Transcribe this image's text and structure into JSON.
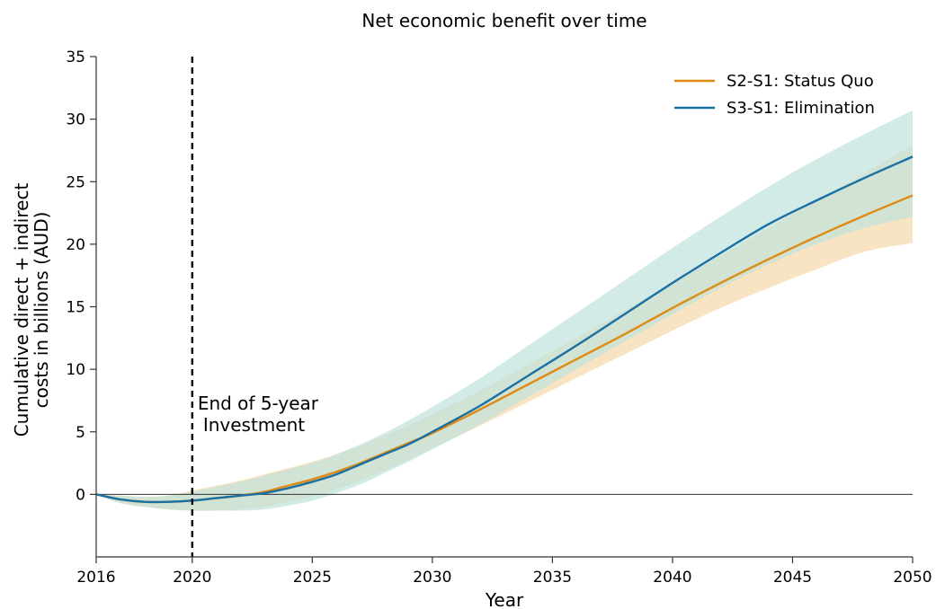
{
  "chart_data": {
    "type": "line",
    "title": "Net economic benefit over time",
    "xlabel": "Year",
    "ylabel_lines": [
      "Cumulative direct + indirect",
      "costs in billions (AUD)"
    ],
    "xlim": [
      2016,
      2050
    ],
    "ylim": [
      -5,
      35
    ],
    "xticks": [
      2016,
      2020,
      2025,
      2030,
      2035,
      2040,
      2045,
      2050
    ],
    "yticks": [
      0,
      5,
      10,
      15,
      20,
      25,
      30,
      35
    ],
    "grid": false,
    "legend_position": "top-right",
    "annotation": {
      "x": 2020,
      "style": "dashed vertical line",
      "text_lines": [
        "End of 5-year",
        "Investment"
      ]
    },
    "reference_line": {
      "y": 0
    },
    "x": [
      2016,
      2017,
      2018,
      2019,
      2020,
      2021,
      2022,
      2023,
      2024,
      2025,
      2026,
      2027,
      2028,
      2029,
      2030,
      2032,
      2034,
      2036,
      2038,
      2040,
      2042,
      2044,
      2046,
      2048,
      2050
    ],
    "series": [
      {
        "name": "S2-S1: Status Quo",
        "color": "#e08a12",
        "band_color": "#f5d9ad",
        "values": [
          0,
          -0.4,
          -0.6,
          -0.6,
          -0.5,
          -0.3,
          -0.1,
          0.2,
          0.7,
          1.2,
          1.8,
          2.5,
          3.3,
          4.1,
          4.9,
          6.8,
          8.8,
          10.8,
          12.8,
          14.9,
          16.9,
          18.8,
          20.6,
          22.3,
          23.9
        ],
        "lower": [
          0,
          -0.7,
          -1.0,
          -1.2,
          -1.3,
          -1.3,
          -1.2,
          -1.0,
          -0.6,
          -0.2,
          0.4,
          1.1,
          1.9,
          2.8,
          3.7,
          5.5,
          7.4,
          9.3,
          11.2,
          13.1,
          14.9,
          16.5,
          18.0,
          19.4,
          20.1
        ],
        "upper": [
          0,
          -0.1,
          -0.2,
          -0.1,
          0.3,
          0.7,
          1.1,
          1.6,
          2.1,
          2.6,
          3.2,
          3.9,
          4.7,
          5.5,
          6.4,
          8.3,
          10.4,
          12.5,
          14.7,
          16.9,
          19.1,
          21.3,
          23.5,
          25.7,
          27.9
        ]
      },
      {
        "name": "S3-S1: Elimination",
        "color": "#1a6fa3",
        "band_color": "#bfe3dc",
        "values": [
          0,
          -0.4,
          -0.6,
          -0.6,
          -0.5,
          -0.3,
          -0.1,
          0.1,
          0.5,
          1.0,
          1.6,
          2.4,
          3.2,
          4.0,
          5.0,
          7.1,
          9.5,
          11.9,
          14.4,
          16.9,
          19.3,
          21.6,
          23.5,
          25.3,
          27.0
        ],
        "lower": [
          0,
          -0.7,
          -1.0,
          -1.2,
          -1.3,
          -1.3,
          -1.3,
          -1.2,
          -0.9,
          -0.5,
          0.1,
          0.8,
          1.7,
          2.6,
          3.6,
          5.6,
          7.8,
          10.0,
          12.2,
          14.4,
          16.5,
          18.4,
          20.0,
          21.3,
          22.2
        ],
        "upper": [
          0,
          -0.1,
          -0.2,
          -0.1,
          0.2,
          0.6,
          1.0,
          1.5,
          2.0,
          2.5,
          3.2,
          4.0,
          4.9,
          5.9,
          7.0,
          9.3,
          11.9,
          14.5,
          17.1,
          19.7,
          22.2,
          24.6,
          26.8,
          28.8,
          30.7
        ]
      }
    ]
  }
}
